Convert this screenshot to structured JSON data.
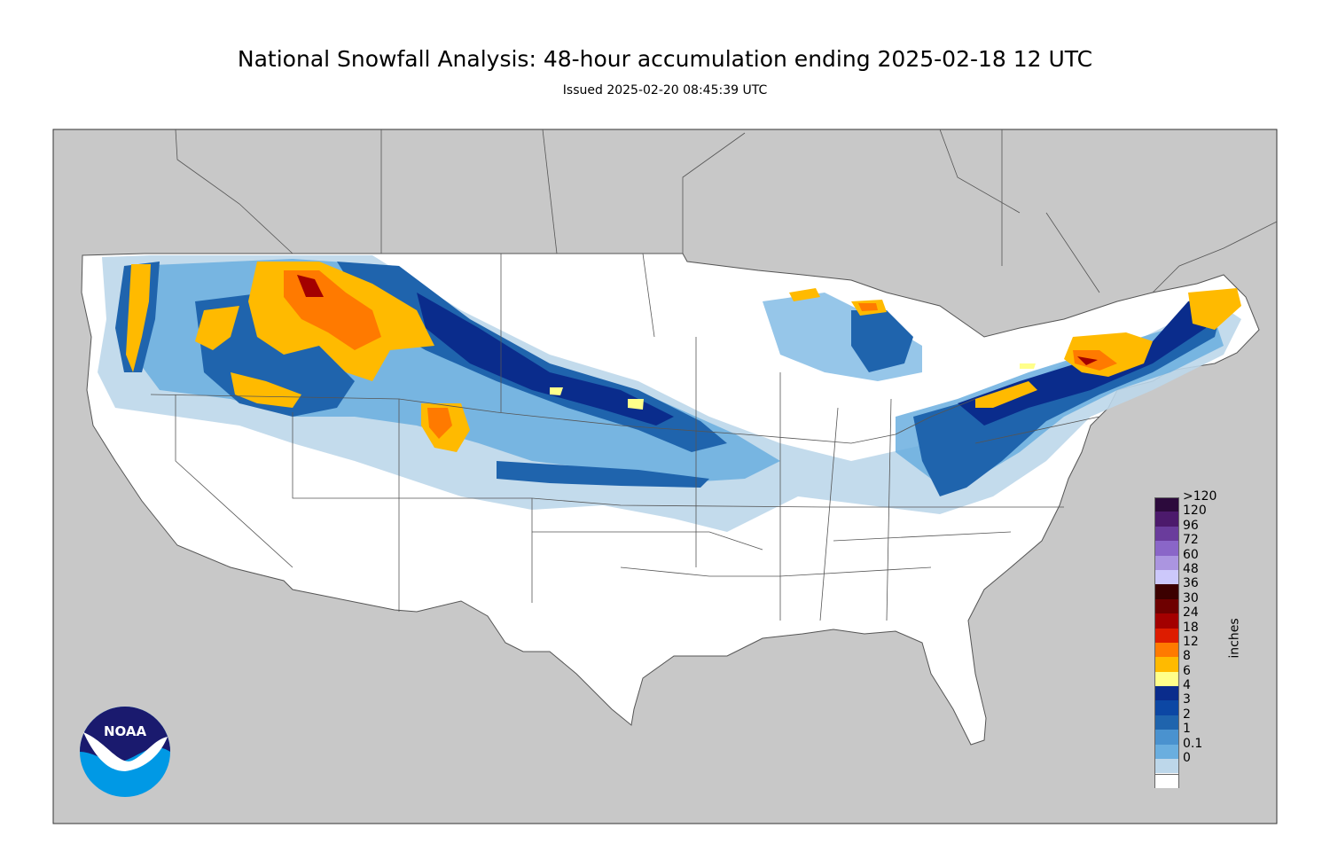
{
  "title": "National Snowfall Analysis: 48-hour accumulation ending 2025-02-18 12 UTC",
  "subtitle": "Issued 2025-02-20 08:45:39 UTC",
  "legend": {
    "units": "inches",
    "items": [
      {
        "label": ">120",
        "color": "#2c0a3c"
      },
      {
        "label": "120",
        "color": "#4c1a6c"
      },
      {
        "label": "96",
        "color": "#6a3c9c"
      },
      {
        "label": "72",
        "color": "#8a66c8"
      },
      {
        "label": "60",
        "color": "#ab95e0"
      },
      {
        "label": "48",
        "color": "#ccc8fb"
      },
      {
        "label": "36",
        "color": "#3c0000"
      },
      {
        "label": "30",
        "color": "#6e0000"
      },
      {
        "label": "24",
        "color": "#a30000"
      },
      {
        "label": "18",
        "color": "#dd1c00"
      },
      {
        "label": "12",
        "color": "#ff7a00"
      },
      {
        "label": "8",
        "color": "#ffba00"
      },
      {
        "label": "6",
        "color": "#ffff8a"
      },
      {
        "label": "4",
        "color": "#0a2c8c"
      },
      {
        "label": "3",
        "color": "#0c47a4"
      },
      {
        "label": "2",
        "color": "#1f64ad"
      },
      {
        "label": "1",
        "color": "#4a92cf"
      },
      {
        "label": "0.1",
        "color": "#6aaedf"
      },
      {
        "label": "0",
        "color": "#bdd7ea"
      }
    ],
    "zero_color": "#ffffff"
  },
  "logo": {
    "text": "NOAA"
  },
  "colors": {
    "ocean_land_bg": "#c8c8c8",
    "us_fill": "#ffffff",
    "borders": "#555555"
  }
}
